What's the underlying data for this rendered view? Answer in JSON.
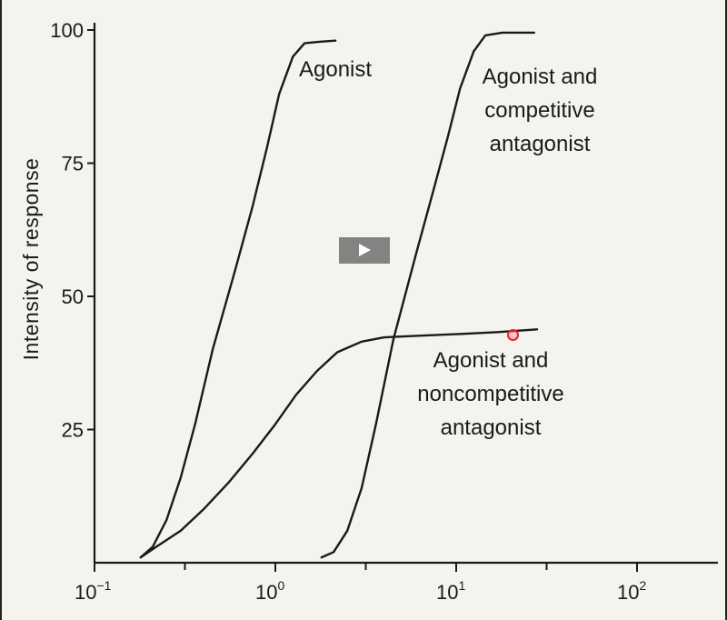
{
  "video_controls": {
    "play_icon": "play-icon"
  },
  "colors": {
    "ink": "#1a1a1a",
    "background": "#f4f3ee",
    "cursor": "#e8222e"
  },
  "chart_data": {
    "type": "line",
    "title": "",
    "xlabel": "",
    "ylabel": "Intensity of response",
    "x_scale": "log",
    "xlim": [
      0.1,
      300
    ],
    "ylim": [
      0,
      100
    ],
    "x_ticks": [
      {
        "value": 0.1,
        "base": "10",
        "exp": "−1"
      },
      {
        "value": 1,
        "base": "10",
        "exp": "0"
      },
      {
        "value": 10,
        "base": "10",
        "exp": "1"
      },
      {
        "value": 100,
        "base": "10",
        "exp": "2"
      }
    ],
    "y_ticks": [
      25,
      50,
      75,
      100
    ],
    "grid": false,
    "series": [
      {
        "name": "Agonist",
        "label_lines": [
          "Agonist"
        ],
        "points": [
          [
            0.18,
            1
          ],
          [
            0.21,
            3
          ],
          [
            0.25,
            8
          ],
          [
            0.3,
            16
          ],
          [
            0.36,
            26
          ],
          [
            0.45,
            40
          ],
          [
            0.6,
            55
          ],
          [
            0.75,
            67
          ],
          [
            0.9,
            78
          ],
          [
            1.05,
            88
          ],
          [
            1.25,
            95
          ],
          [
            1.45,
            97.5
          ],
          [
            1.75,
            97.8
          ],
          [
            2.15,
            98
          ]
        ]
      },
      {
        "name": "Agonist and competitive antagonist",
        "label_lines": [
          "Agonist and",
          "competitive",
          "antagonist"
        ],
        "points": [
          [
            1.8,
            1
          ],
          [
            2.1,
            2
          ],
          [
            2.5,
            6
          ],
          [
            3.0,
            14
          ],
          [
            3.6,
            26
          ],
          [
            4.5,
            42
          ],
          [
            6,
            58
          ],
          [
            7.5,
            70
          ],
          [
            9,
            80
          ],
          [
            10.5,
            89
          ],
          [
            12.5,
            96
          ],
          [
            14.5,
            99
          ],
          [
            18,
            99.5
          ],
          [
            27,
            99.5
          ]
        ]
      },
      {
        "name": "Agonist and noncompetitive antagonist",
        "label_lines": [
          "Agonist and",
          "noncompetitive",
          "antagonist"
        ],
        "points": [
          [
            0.18,
            1
          ],
          [
            0.22,
            3
          ],
          [
            0.3,
            6
          ],
          [
            0.4,
            10
          ],
          [
            0.55,
            15
          ],
          [
            0.75,
            20.5
          ],
          [
            1.0,
            26
          ],
          [
            1.3,
            31.5
          ],
          [
            1.7,
            36
          ],
          [
            2.2,
            39.5
          ],
          [
            3.0,
            41.5
          ],
          [
            4.0,
            42.3
          ],
          [
            6,
            42.6
          ],
          [
            10,
            42.9
          ],
          [
            17,
            43.3
          ],
          [
            28,
            43.8
          ]
        ]
      }
    ]
  }
}
